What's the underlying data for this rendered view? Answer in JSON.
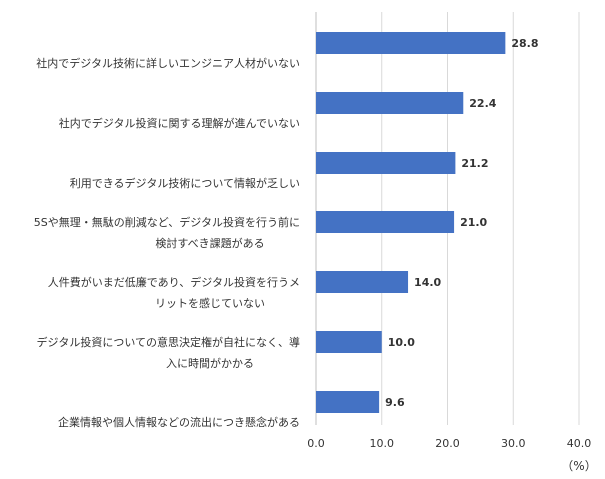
{
  "chart_data": {
    "type": "bar",
    "orientation": "horizontal",
    "categories": [
      [
        "社内でデジタル技術に詳しいエンジニア人材がいない"
      ],
      [
        "社内でデジタル投資に関する理解が進んでいない"
      ],
      [
        "利用できるデジタル技術について情報が乏しい"
      ],
      [
        "5Sや無理・無駄の削減など、デジタル投資を行う前に",
        "検討すべき課題がある"
      ],
      [
        "人件費がいまだ低廉であり、デジタル投資を行うメ",
        "リットを感じていない"
      ],
      [
        "デジタル投資についての意思決定権が自社になく、導",
        "入に時間がかかる"
      ],
      [
        "企業情報や個人情報などの流出につき懸念がある"
      ]
    ],
    "values": [
      28.8,
      22.4,
      21.2,
      21.0,
      14.0,
      10.0,
      9.6
    ],
    "value_labels": [
      "28.8",
      "22.4",
      "21.2",
      "21.0",
      "14.0",
      "10.0",
      "9.6"
    ],
    "xlim": [
      0,
      40
    ],
    "x_ticks": [
      0,
      10,
      20,
      30,
      40
    ],
    "x_tick_labels": [
      "0.0",
      "10.0",
      "20.0",
      "30.0",
      "40.0"
    ],
    "unit": "（%）",
    "bar_color": "#4472c4",
    "grid": true,
    "title": "",
    "xlabel": "",
    "ylabel": ""
  }
}
